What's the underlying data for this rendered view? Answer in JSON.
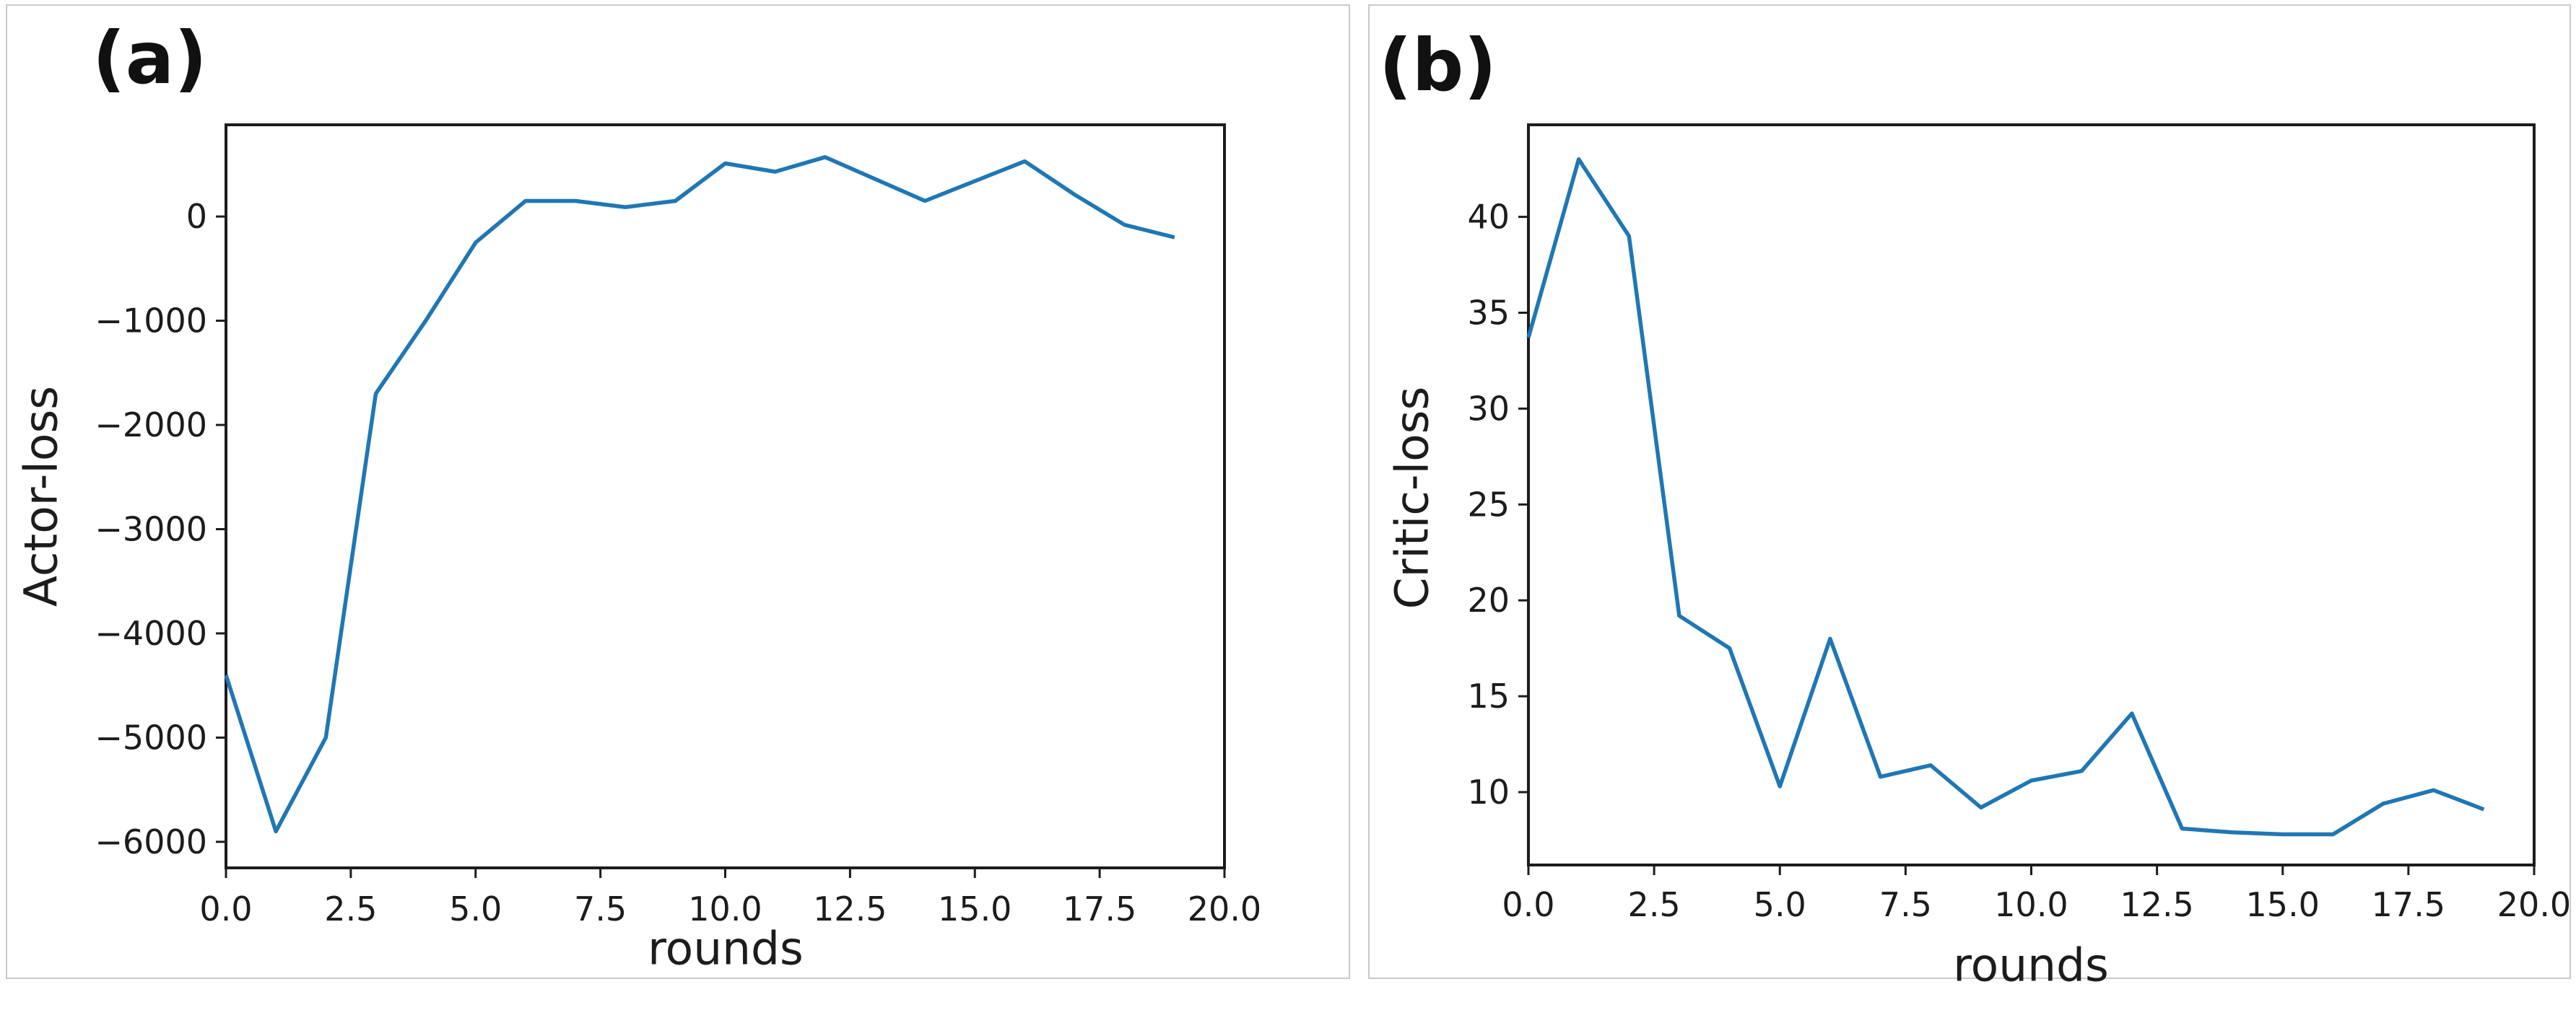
{
  "figure": {
    "background_color": "#ffffff",
    "panel_border_color": "#c9c9c9",
    "spine_color": "#1c1c1c",
    "text_color": "#1c1c1c"
  },
  "chart_data": [
    {
      "type": "line",
      "panel_label": "(a)",
      "xlabel": "rounds",
      "ylabel": "Actor-loss",
      "line_color": "#1f77b4",
      "grid": false,
      "legend": null,
      "xlim": [
        0,
        20
      ],
      "ylim": [
        -6250,
        880
      ],
      "x": [
        0,
        1,
        2,
        3,
        4,
        5,
        6,
        7,
        8,
        9,
        10,
        11,
        12,
        13,
        14,
        15,
        16,
        17,
        18,
        19
      ],
      "y": [
        -4400,
        -5900,
        -5000,
        -1700,
        -1000,
        -250,
        150,
        150,
        90,
        150,
        510,
        430,
        570,
        360,
        150,
        340,
        530,
        210,
        -80,
        -200
      ],
      "xticks": [
        {
          "v": 0.0,
          "label": "0.0"
        },
        {
          "v": 2.5,
          "label": "2.5"
        },
        {
          "v": 5.0,
          "label": "5.0"
        },
        {
          "v": 7.5,
          "label": "7.5"
        },
        {
          "v": 10.0,
          "label": "10.0"
        },
        {
          "v": 12.5,
          "label": "12.5"
        },
        {
          "v": 15.0,
          "label": "15.0"
        },
        {
          "v": 17.5,
          "label": "17.5"
        },
        {
          "v": 20.0,
          "label": "20.0"
        }
      ],
      "yticks": [
        {
          "v": 0,
          "label": "0"
        },
        {
          "v": -1000,
          "label": "−1000"
        },
        {
          "v": -2000,
          "label": "−2000"
        },
        {
          "v": -3000,
          "label": "−3000"
        },
        {
          "v": -4000,
          "label": "−4000"
        },
        {
          "v": -5000,
          "label": "−5000"
        },
        {
          "v": -6000,
          "label": "−6000"
        }
      ]
    },
    {
      "type": "line",
      "panel_label": "(b)",
      "xlabel": "rounds",
      "ylabel": "Critic-loss",
      "line_color": "#1f77b4",
      "grid": false,
      "legend": null,
      "xlim": [
        0,
        20
      ],
      "ylim": [
        6.2,
        44.8
      ],
      "x": [
        0,
        1,
        2,
        3,
        4,
        5,
        6,
        7,
        8,
        9,
        10,
        11,
        12,
        13,
        14,
        15,
        16,
        17,
        18,
        19
      ],
      "y": [
        33.7,
        43.0,
        39.0,
        19.2,
        17.5,
        10.3,
        18.0,
        10.8,
        11.4,
        9.2,
        10.6,
        11.1,
        14.1,
        8.1,
        7.9,
        7.8,
        7.8,
        9.4,
        10.1,
        9.1
      ],
      "xticks": [
        {
          "v": 0.0,
          "label": "0.0"
        },
        {
          "v": 2.5,
          "label": "2.5"
        },
        {
          "v": 5.0,
          "label": "5.0"
        },
        {
          "v": 7.5,
          "label": "7.5"
        },
        {
          "v": 10.0,
          "label": "10.0"
        },
        {
          "v": 12.5,
          "label": "12.5"
        },
        {
          "v": 15.0,
          "label": "15.0"
        },
        {
          "v": 17.5,
          "label": "17.5"
        },
        {
          "v": 20.0,
          "label": "20.0"
        }
      ],
      "yticks": [
        {
          "v": 10,
          "label": "10"
        },
        {
          "v": 15,
          "label": "15"
        },
        {
          "v": 20,
          "label": "20"
        },
        {
          "v": 25,
          "label": "25"
        },
        {
          "v": 30,
          "label": "30"
        },
        {
          "v": 35,
          "label": "35"
        },
        {
          "v": 40,
          "label": "40"
        }
      ]
    }
  ]
}
